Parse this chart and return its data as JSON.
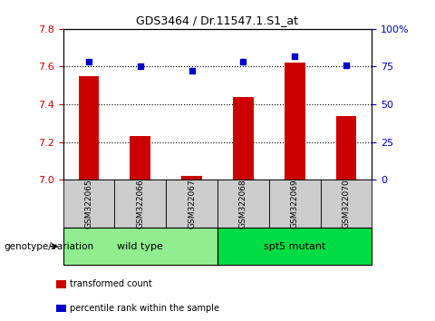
{
  "title": "GDS3464 / Dr.11547.1.S1_at",
  "samples": [
    "GSM322065",
    "GSM322066",
    "GSM322067",
    "GSM322068",
    "GSM322069",
    "GSM322070"
  ],
  "red_values": [
    7.55,
    7.23,
    7.02,
    7.44,
    7.62,
    7.34
  ],
  "blue_values": [
    78,
    75,
    72,
    78,
    82,
    76
  ],
  "ylim_left": [
    7.0,
    7.8
  ],
  "ylim_right": [
    0,
    100
  ],
  "yticks_left": [
    7.0,
    7.2,
    7.4,
    7.6,
    7.8
  ],
  "yticks_right": [
    0,
    25,
    50,
    75,
    100
  ],
  "ytick_labels_right": [
    "0",
    "25",
    "50",
    "75",
    "100%"
  ],
  "groups": [
    {
      "label": "wild type",
      "indices": [
        0,
        1,
        2
      ],
      "color": "#90EE90"
    },
    {
      "label": "spt5 mutant",
      "indices": [
        3,
        4,
        5
      ],
      "color": "#00DD44"
    }
  ],
  "group_label": "genotype/variation",
  "bar_color": "#CC0000",
  "dot_color": "#0000CC",
  "bar_width": 0.4,
  "background_color": "#ffffff",
  "tick_label_color_left": "#CC0000",
  "tick_label_color_right": "#0000CC",
  "legend_items": [
    {
      "color": "#CC0000",
      "label": "transformed count"
    },
    {
      "color": "#0000CC",
      "label": "percentile rank within the sample"
    }
  ],
  "grid_color": "#000000",
  "sample_box_color": "#cccccc"
}
